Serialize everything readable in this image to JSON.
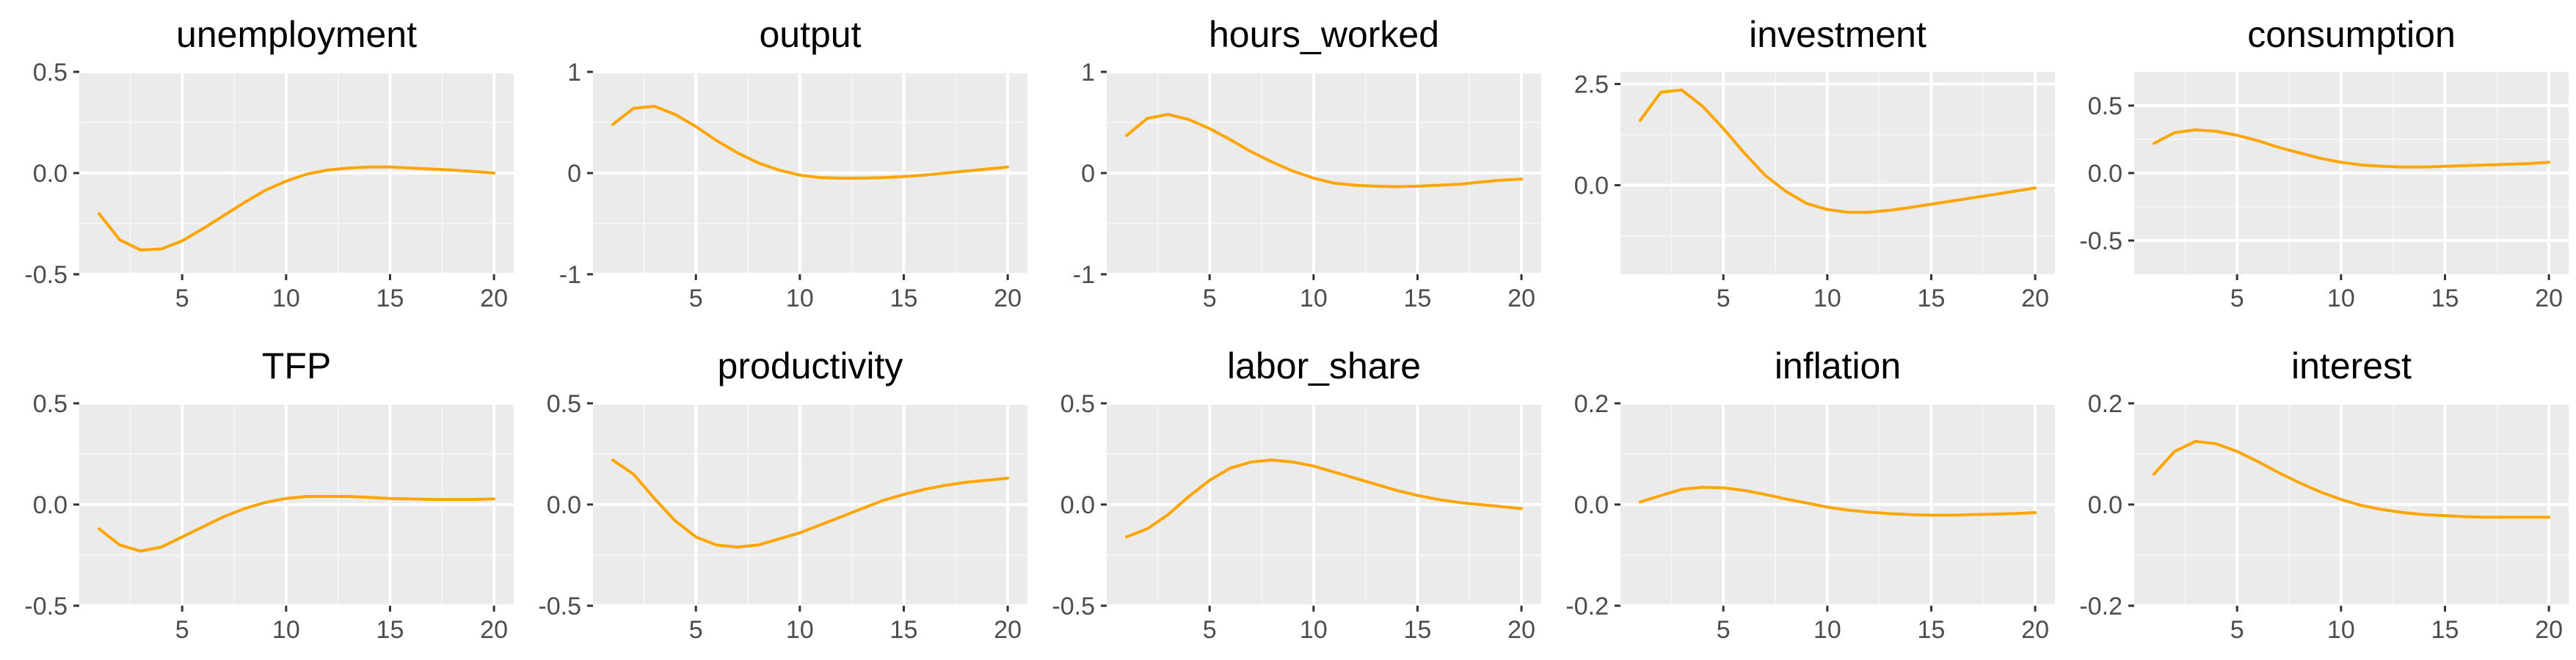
{
  "chart_data": [
    {
      "type": "line",
      "title": "unemployment",
      "xlabel": "",
      "ylabel": "",
      "x": [
        1,
        2,
        3,
        4,
        5,
        6,
        7,
        8,
        9,
        10,
        11,
        12,
        13,
        14,
        15,
        16,
        17,
        18,
        19,
        20
      ],
      "series": [
        {
          "values": [
            -0.2,
            -0.33,
            -0.38,
            -0.375,
            -0.335,
            -0.275,
            -0.21,
            -0.145,
            -0.085,
            -0.04,
            -0.005,
            0.015,
            0.025,
            0.03,
            0.03,
            0.025,
            0.02,
            0.015,
            0.008,
            0.0
          ]
        }
      ],
      "xlim": [
        0.05,
        20.95
      ],
      "ylim": [
        -0.5,
        0.5
      ],
      "xticks": [
        5,
        10,
        15,
        20
      ],
      "xtick_labels": [
        "5",
        "10",
        "15",
        "20"
      ],
      "yticks": [
        -0.5,
        0.0,
        0.5
      ],
      "ytick_labels": [
        "-0.5",
        "0.0",
        "0.5"
      ],
      "grid": true
    },
    {
      "type": "line",
      "title": "output",
      "xlabel": "",
      "ylabel": "",
      "x": [
        1,
        2,
        3,
        4,
        5,
        6,
        7,
        8,
        9,
        10,
        11,
        12,
        13,
        14,
        15,
        16,
        17,
        18,
        19,
        20
      ],
      "series": [
        {
          "values": [
            0.48,
            0.64,
            0.66,
            0.58,
            0.46,
            0.32,
            0.2,
            0.1,
            0.03,
            -0.02,
            -0.045,
            -0.05,
            -0.05,
            -0.045,
            -0.035,
            -0.02,
            0.0,
            0.02,
            0.04,
            0.06
          ]
        }
      ],
      "xlim": [
        0.05,
        20.95
      ],
      "ylim": [
        -1,
        1
      ],
      "xticks": [
        5,
        10,
        15,
        20
      ],
      "xtick_labels": [
        "5",
        "10",
        "15",
        "20"
      ],
      "yticks": [
        -1,
        0,
        1
      ],
      "ytick_labels": [
        "-1",
        "0",
        "1"
      ],
      "grid": true
    },
    {
      "type": "line",
      "title": "hours_worked",
      "xlabel": "",
      "ylabel": "",
      "x": [
        1,
        2,
        3,
        4,
        5,
        6,
        7,
        8,
        9,
        10,
        11,
        12,
        13,
        14,
        15,
        16,
        17,
        18,
        19,
        20
      ],
      "series": [
        {
          "values": [
            0.37,
            0.54,
            0.58,
            0.53,
            0.44,
            0.33,
            0.21,
            0.11,
            0.02,
            -0.05,
            -0.1,
            -0.12,
            -0.13,
            -0.135,
            -0.13,
            -0.12,
            -0.11,
            -0.09,
            -0.07,
            -0.06
          ]
        }
      ],
      "xlim": [
        0.05,
        20.95
      ],
      "ylim": [
        -1,
        1
      ],
      "xticks": [
        5,
        10,
        15,
        20
      ],
      "xtick_labels": [
        "5",
        "10",
        "15",
        "20"
      ],
      "yticks": [
        -1,
        0,
        1
      ],
      "ytick_labels": [
        "-1",
        "0",
        "1"
      ],
      "grid": true
    },
    {
      "type": "line",
      "title": "investment",
      "xlabel": "",
      "ylabel": "",
      "x": [
        1,
        2,
        3,
        4,
        5,
        6,
        7,
        8,
        9,
        10,
        11,
        12,
        13,
        14,
        15,
        16,
        17,
        18,
        19,
        20
      ],
      "series": [
        {
          "values": [
            1.6,
            2.3,
            2.35,
            1.95,
            1.4,
            0.8,
            0.25,
            -0.15,
            -0.45,
            -0.6,
            -0.67,
            -0.67,
            -0.62,
            -0.55,
            -0.47,
            -0.39,
            -0.31,
            -0.23,
            -0.15,
            -0.07
          ]
        }
      ],
      "xlim": [
        0.05,
        20.95
      ],
      "ylim": [
        -2.2,
        2.8
      ],
      "xticks": [
        5,
        10,
        15,
        20
      ],
      "xtick_labels": [
        "5",
        "10",
        "15",
        "20"
      ],
      "yticks": [
        0.0,
        2.5
      ],
      "ytick_labels": [
        "0.0",
        "2.5"
      ],
      "grid": true
    },
    {
      "type": "line",
      "title": "consumption",
      "xlabel": "",
      "ylabel": "",
      "x": [
        1,
        2,
        3,
        4,
        5,
        6,
        7,
        8,
        9,
        10,
        11,
        12,
        13,
        14,
        15,
        16,
        17,
        18,
        19,
        20
      ],
      "series": [
        {
          "values": [
            0.22,
            0.3,
            0.32,
            0.31,
            0.28,
            0.24,
            0.19,
            0.15,
            0.11,
            0.08,
            0.06,
            0.05,
            0.045,
            0.045,
            0.05,
            0.055,
            0.06,
            0.065,
            0.07,
            0.08
          ]
        }
      ],
      "xlim": [
        0.05,
        20.95
      ],
      "ylim": [
        -0.75,
        0.75
      ],
      "xticks": [
        5,
        10,
        15,
        20
      ],
      "xtick_labels": [
        "5",
        "10",
        "15",
        "20"
      ],
      "yticks": [
        -0.5,
        0.0,
        0.5
      ],
      "ytick_labels": [
        "-0.5",
        "0.0",
        "0.5"
      ],
      "grid": true
    },
    {
      "type": "line",
      "title": "TFP",
      "xlabel": "",
      "ylabel": "",
      "x": [
        1,
        2,
        3,
        4,
        5,
        6,
        7,
        8,
        9,
        10,
        11,
        12,
        13,
        14,
        15,
        16,
        17,
        18,
        19,
        20
      ],
      "series": [
        {
          "values": [
            -0.12,
            -0.2,
            -0.23,
            -0.21,
            -0.16,
            -0.11,
            -0.06,
            -0.02,
            0.01,
            0.03,
            0.04,
            0.04,
            0.04,
            0.035,
            0.03,
            0.028,
            0.025,
            0.025,
            0.025,
            0.028
          ]
        }
      ],
      "xlim": [
        0.05,
        20.95
      ],
      "ylim": [
        -0.5,
        0.5
      ],
      "xticks": [
        5,
        10,
        15,
        20
      ],
      "xtick_labels": [
        "5",
        "10",
        "15",
        "20"
      ],
      "yticks": [
        -0.5,
        0.0,
        0.5
      ],
      "ytick_labels": [
        "-0.5",
        "0.0",
        "0.5"
      ],
      "grid": true
    },
    {
      "type": "line",
      "title": "productivity",
      "xlabel": "",
      "ylabel": "",
      "x": [
        1,
        2,
        3,
        4,
        5,
        6,
        7,
        8,
        9,
        10,
        11,
        12,
        13,
        14,
        15,
        16,
        17,
        18,
        19,
        20
      ],
      "series": [
        {
          "values": [
            0.22,
            0.15,
            0.03,
            -0.08,
            -0.16,
            -0.2,
            -0.21,
            -0.2,
            -0.17,
            -0.14,
            -0.1,
            -0.06,
            -0.02,
            0.02,
            0.05,
            0.075,
            0.095,
            0.11,
            0.12,
            0.13
          ]
        }
      ],
      "xlim": [
        0.05,
        20.95
      ],
      "ylim": [
        -0.5,
        0.5
      ],
      "xticks": [
        5,
        10,
        15,
        20
      ],
      "xtick_labels": [
        "5",
        "10",
        "15",
        "20"
      ],
      "yticks": [
        -0.5,
        0.0,
        0.5
      ],
      "ytick_labels": [
        "-0.5",
        "0.0",
        "0.5"
      ],
      "grid": true
    },
    {
      "type": "line",
      "title": "labor_share",
      "xlabel": "",
      "ylabel": "",
      "x": [
        1,
        2,
        3,
        4,
        5,
        6,
        7,
        8,
        9,
        10,
        11,
        12,
        13,
        14,
        15,
        16,
        17,
        18,
        19,
        20
      ],
      "series": [
        {
          "values": [
            -0.16,
            -0.12,
            -0.05,
            0.04,
            0.12,
            0.18,
            0.21,
            0.22,
            0.21,
            0.19,
            0.16,
            0.13,
            0.1,
            0.07,
            0.045,
            0.025,
            0.01,
            0.0,
            -0.01,
            -0.02
          ]
        }
      ],
      "xlim": [
        0.05,
        20.95
      ],
      "ylim": [
        -0.5,
        0.5
      ],
      "xticks": [
        5,
        10,
        15,
        20
      ],
      "xtick_labels": [
        "5",
        "10",
        "15",
        "20"
      ],
      "yticks": [
        -0.5,
        0.0,
        0.5
      ],
      "ytick_labels": [
        "-0.5",
        "0.0",
        "0.5"
      ],
      "grid": true
    },
    {
      "type": "line",
      "title": "inflation",
      "xlabel": "",
      "ylabel": "",
      "x": [
        1,
        2,
        3,
        4,
        5,
        6,
        7,
        8,
        9,
        10,
        11,
        12,
        13,
        14,
        15,
        16,
        17,
        18,
        19,
        20
      ],
      "series": [
        {
          "values": [
            0.005,
            0.018,
            0.03,
            0.034,
            0.033,
            0.028,
            0.02,
            0.011,
            0.003,
            -0.005,
            -0.011,
            -0.015,
            -0.018,
            -0.02,
            -0.021,
            -0.021,
            -0.02,
            -0.019,
            -0.018,
            -0.016
          ]
        }
      ],
      "xlim": [
        0.05,
        20.95
      ],
      "ylim": [
        -0.2,
        0.2
      ],
      "xticks": [
        5,
        10,
        15,
        20
      ],
      "xtick_labels": [
        "5",
        "10",
        "15",
        "20"
      ],
      "yticks": [
        -0.2,
        0.0,
        0.2
      ],
      "ytick_labels": [
        "-0.2",
        "0.0",
        "0.2"
      ],
      "grid": true
    },
    {
      "type": "line",
      "title": "interest",
      "xlabel": "",
      "ylabel": "",
      "x": [
        1,
        2,
        3,
        4,
        5,
        6,
        7,
        8,
        9,
        10,
        11,
        12,
        13,
        14,
        15,
        16,
        17,
        18,
        19,
        20
      ],
      "series": [
        {
          "values": [
            0.06,
            0.105,
            0.125,
            0.12,
            0.105,
            0.085,
            0.063,
            0.043,
            0.025,
            0.01,
            -0.002,
            -0.01,
            -0.016,
            -0.02,
            -0.022,
            -0.024,
            -0.025,
            -0.025,
            -0.025,
            -0.025
          ]
        }
      ],
      "xlim": [
        0.05,
        20.95
      ],
      "ylim": [
        -0.2,
        0.2
      ],
      "xticks": [
        5,
        10,
        15,
        20
      ],
      "xtick_labels": [
        "5",
        "10",
        "15",
        "20"
      ],
      "yticks": [
        -0.2,
        0.0,
        0.2
      ],
      "ytick_labels": [
        "-0.2",
        "0.0",
        "0.2"
      ],
      "grid": true
    }
  ],
  "style": {
    "line_color": "#FFA500",
    "panel_bg": "#EBEBEB",
    "grid_major": "#FFFFFF",
    "grid_minor": "#F5F5F5",
    "text_color": "#000000",
    "tick_color": "#4D4D4D"
  }
}
